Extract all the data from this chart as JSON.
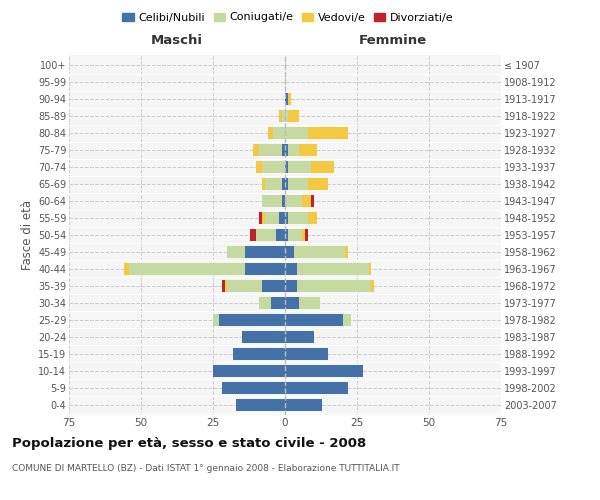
{
  "age_groups": [
    "0-4",
    "5-9",
    "10-14",
    "15-19",
    "20-24",
    "25-29",
    "30-34",
    "35-39",
    "40-44",
    "45-49",
    "50-54",
    "55-59",
    "60-64",
    "65-69",
    "70-74",
    "75-79",
    "80-84",
    "85-89",
    "90-94",
    "95-99",
    "100+"
  ],
  "birth_years": [
    "2003-2007",
    "1998-2002",
    "1993-1997",
    "1988-1992",
    "1983-1987",
    "1978-1982",
    "1973-1977",
    "1968-1972",
    "1963-1967",
    "1958-1962",
    "1953-1957",
    "1948-1952",
    "1943-1947",
    "1938-1942",
    "1933-1937",
    "1928-1932",
    "1923-1927",
    "1918-1922",
    "1913-1917",
    "1908-1912",
    "≤ 1907"
  ],
  "maschi": {
    "celibe": [
      17,
      22,
      25,
      18,
      15,
      23,
      5,
      8,
      14,
      14,
      3,
      2,
      1,
      1,
      0,
      1,
      0,
      0,
      0,
      0,
      0
    ],
    "coniugato": [
      0,
      0,
      0,
      0,
      0,
      2,
      4,
      12,
      40,
      6,
      7,
      5,
      7,
      6,
      8,
      8,
      4,
      1,
      0,
      0,
      0
    ],
    "vedovo": [
      0,
      0,
      0,
      0,
      0,
      0,
      0,
      1,
      2,
      0,
      0,
      1,
      0,
      1,
      2,
      2,
      2,
      1,
      0,
      0,
      0
    ],
    "divorziato": [
      0,
      0,
      0,
      0,
      0,
      0,
      0,
      1,
      0,
      0,
      2,
      1,
      0,
      0,
      0,
      0,
      0,
      0,
      0,
      0,
      0
    ]
  },
  "femmine": {
    "nubile": [
      13,
      22,
      27,
      15,
      10,
      20,
      5,
      4,
      4,
      3,
      1,
      1,
      0,
      1,
      1,
      1,
      0,
      0,
      1,
      0,
      0
    ],
    "coniugata": [
      0,
      0,
      0,
      0,
      0,
      3,
      7,
      26,
      25,
      18,
      5,
      7,
      6,
      7,
      8,
      4,
      8,
      1,
      0,
      0,
      0
    ],
    "vedova": [
      0,
      0,
      0,
      0,
      0,
      0,
      0,
      1,
      1,
      1,
      1,
      3,
      3,
      7,
      8,
      6,
      14,
      4,
      1,
      0,
      0
    ],
    "divorziata": [
      0,
      0,
      0,
      0,
      0,
      0,
      0,
      0,
      0,
      0,
      1,
      0,
      1,
      0,
      0,
      0,
      0,
      0,
      0,
      0,
      0
    ]
  },
  "colors": {
    "celibe_nubile": "#4472a8",
    "coniugato": "#c5d9a0",
    "vedovo": "#f5c842",
    "divorziato": "#c0222a"
  },
  "title": "Popolazione per età, sesso e stato civile - 2008",
  "subtitle": "COMUNE DI MARTELLO (BZ) - Dati ISTAT 1° gennaio 2008 - Elaborazione TUTTITALIA.IT",
  "xlabel_left": "Maschi",
  "xlabel_right": "Femmine",
  "ylabel_left": "Fasce di età",
  "xlim": 75,
  "bg_color": "#f0f0f0",
  "plot_bg": "#f5f5f5",
  "legend_labels": [
    "Celibi/Nubili",
    "Coniugati/e",
    "Vedovi/e",
    "Divorziati/e"
  ]
}
